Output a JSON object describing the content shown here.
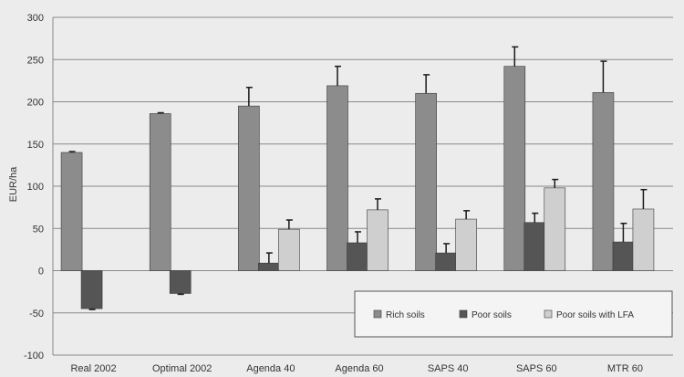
{
  "chart_data": {
    "type": "bar",
    "title": "",
    "xlabel": "",
    "ylabel": "EUR/ha",
    "ylim": [
      -100,
      300
    ],
    "yticks": [
      -100,
      -50,
      0,
      50,
      100,
      150,
      200,
      250,
      300
    ],
    "grid": true,
    "legend_position": "bottom-right",
    "categories": [
      "Real 2002",
      "Optimal 2002",
      "Agenda 40",
      "Agenda 60",
      "SAPS 40",
      "SAPS 60",
      "MTR 60"
    ],
    "series": [
      {
        "name": "Rich soils",
        "color": "#8c8c8c",
        "values": [
          140,
          186,
          195,
          219,
          210,
          242,
          211
        ],
        "errors": [
          1,
          1,
          22,
          23,
          22,
          23,
          37
        ]
      },
      {
        "name": "Poor soils",
        "color": "#555555",
        "values": [
          -45,
          -27,
          9,
          33,
          21,
          57,
          34
        ],
        "errors": [
          1,
          1,
          12,
          13,
          11,
          11,
          22
        ]
      },
      {
        "name": "Poor soils with LFA",
        "color": "#cfcfcf",
        "values": null,
        "values_list": [
          null,
          null,
          49,
          72,
          61,
          98,
          73
        ],
        "errors": [
          null,
          null,
          11,
          13,
          10,
          10,
          23
        ]
      }
    ]
  }
}
